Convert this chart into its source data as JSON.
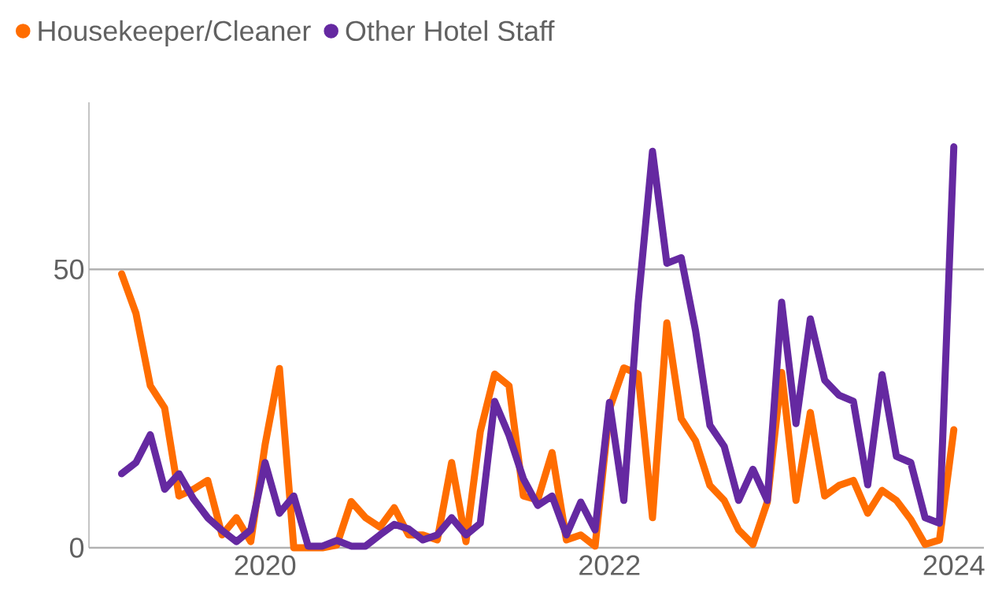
{
  "chart_data": {
    "type": "line",
    "x": [
      "2019-03",
      "2019-04",
      "2019-05",
      "2019-06",
      "2019-07",
      "2019-08",
      "2019-09",
      "2019-10",
      "2019-11",
      "2019-12",
      "2020-01",
      "2020-02",
      "2020-03",
      "2020-04",
      "2020-05",
      "2020-06",
      "2020-07",
      "2020-08",
      "2020-09",
      "2020-10",
      "2020-11",
      "2020-12",
      "2021-01",
      "2021-02",
      "2021-03",
      "2021-04",
      "2021-05",
      "2021-06",
      "2021-07",
      "2021-08",
      "2021-09",
      "2021-10",
      "2021-11",
      "2021-12",
      "2022-01",
      "2022-02",
      "2022-03",
      "2022-04",
      "2022-05",
      "2022-06",
      "2022-07",
      "2022-08",
      "2022-09",
      "2022-10",
      "2022-11",
      "2022-12",
      "2023-01",
      "2023-02",
      "2023-03",
      "2023-04",
      "2023-05",
      "2023-06",
      "2023-07",
      "2023-08",
      "2023-09",
      "2023-10",
      "2023-11",
      "2023-12",
      "2024-01"
    ],
    "series": [
      {
        "name": "Housekeeper/Cleaner",
        "color": "#ff6d00",
        "values": [
          49.2,
          42.1,
          29.1,
          25.1,
          9.3,
          10.5,
          12.1,
          2.3,
          5.4,
          1.1,
          18.5,
          32.2,
          0,
          0,
          0,
          0.5,
          8.3,
          5.4,
          3.7,
          7.2,
          2.3,
          2.3,
          1.4,
          15.3,
          1.1,
          20.9,
          31.2,
          29.1,
          9.3,
          8.6,
          17.1,
          1.4,
          2.3,
          0.3,
          24.9,
          32.3,
          31.2,
          5.4,
          40.4,
          23.2,
          19.2,
          11.2,
          8.5,
          3.2,
          0.6,
          8.2,
          31.5,
          8.5,
          24.3,
          9.3,
          11.2,
          12.1,
          6.2,
          10.3,
          8.5,
          5.1,
          0.6,
          1.4,
          21.2
        ]
      },
      {
        "name": "Other Hotel Staff",
        "color": "#6529a1",
        "values": [
          13.3,
          15.3,
          20.3,
          10.5,
          13.3,
          8.8,
          5.4,
          3.1,
          1.1,
          3.2,
          15.3,
          6.2,
          9.3,
          0.3,
          0.3,
          1.3,
          0.3,
          0.3,
          2.3,
          4.2,
          3.4,
          1.4,
          2.3,
          5.4,
          2.3,
          4.4,
          26.3,
          20.2,
          12.4,
          7.6,
          9.3,
          2.3,
          8.2,
          3.2,
          26.1,
          8.5,
          43.9,
          71.2,
          51.1,
          52.1,
          39.0,
          22.0,
          18.2,
          8.5,
          14.1,
          8.5,
          44.1,
          22.3,
          41.1,
          30.1,
          27.4,
          26.3,
          11.3,
          31.1,
          16.4,
          15.3,
          5.4,
          4.4,
          72.0
        ]
      }
    ],
    "xlim": [
      "2018-12-23",
      "2024-03-04"
    ],
    "xticks": [
      "2020",
      "2022",
      "2024"
    ],
    "ylim": [
      0,
      80
    ],
    "yticks": [
      0,
      50
    ],
    "grid": "y",
    "legend": "top left",
    "marker": "none",
    "line_style": "solid"
  }
}
